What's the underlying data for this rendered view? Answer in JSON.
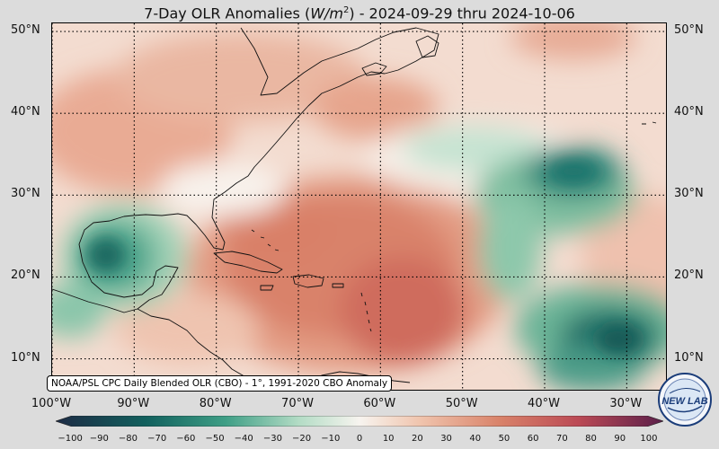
{
  "title": {
    "prefix": "7-Day OLR Anomalies (",
    "unit_base": "W/m",
    "unit_exp": "2",
    "suffix": ") - 2024-09-29 thru 2024-10-06"
  },
  "map": {
    "lat_labels": [
      "50°N",
      "40°N",
      "30°N",
      "20°N",
      "10°N"
    ],
    "lat_values": [
      50,
      40,
      30,
      20,
      10
    ],
    "lon_labels": [
      "100°W",
      "90°W",
      "80°W",
      "70°W",
      "60°W",
      "50°W",
      "40°W",
      "30°W"
    ],
    "lon_values": [
      -100,
      -90,
      -80,
      -70,
      -60,
      -50,
      -40,
      -30
    ],
    "extent": {
      "lon_min": -100,
      "lon_max": -25,
      "lat_min": 6,
      "lat_max": 51
    },
    "source_note": "NOAA/PSL CPC Daily Blended OLR (CBO) - 1°, 1991-2020 CBO Anomaly"
  },
  "colorbar": {
    "ticks": [
      "−100",
      "−90",
      "−80",
      "−70",
      "−60",
      "−50",
      "−40",
      "−30",
      "−20",
      "−10",
      "0",
      "10",
      "20",
      "30",
      "40",
      "50",
      "60",
      "70",
      "80",
      "90",
      "100"
    ],
    "min": -105,
    "max": 105,
    "colors": {
      "neg_extreme": "#1d2b45",
      "neg_strong": "#12615e",
      "neg_mid": "#3f9f86",
      "neg_weak": "#b3dcc5",
      "neutral": "#f7f4ef",
      "pos_weak": "#f0c4ad",
      "pos_mid": "#d9836a",
      "pos_strong": "#bb4a55",
      "pos_extreme": "#5b1f4a"
    }
  },
  "logo": {
    "text": "NEW LAB"
  }
}
